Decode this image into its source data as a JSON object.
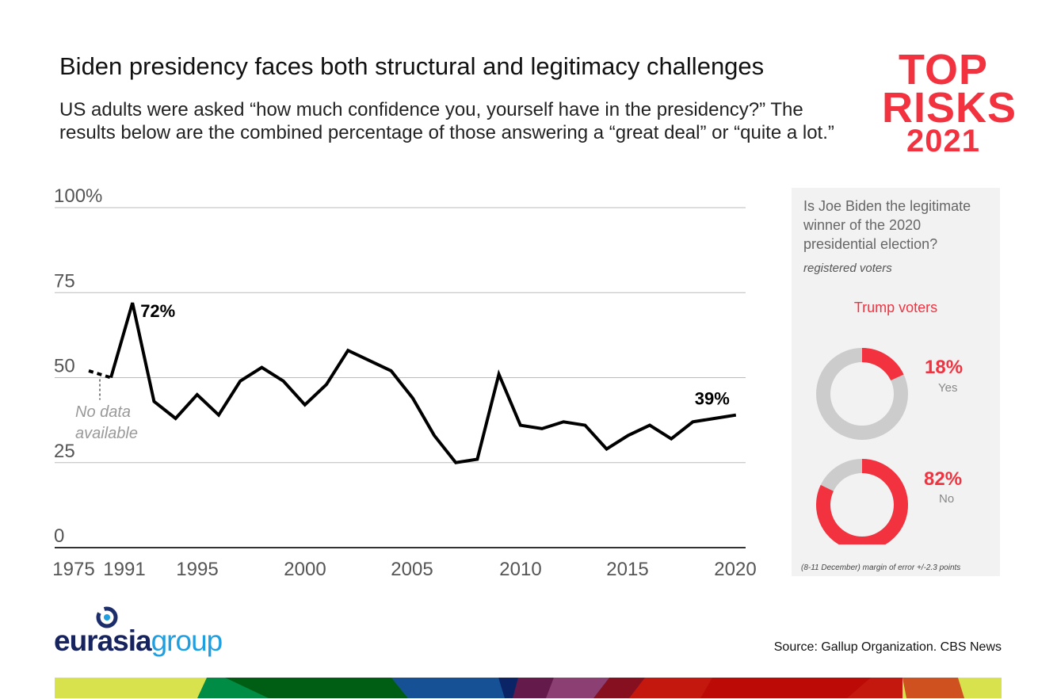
{
  "title": "Biden presidency faces both structural and legitimacy challenges",
  "subtitle": "US adults were asked “how much confidence you, yourself have in the presidency?” The results below are the combined percentage of those answering a “great deal” or “quite a lot.”",
  "logo": {
    "line1": "TOP",
    "line2": "RISKS",
    "line3": "2021",
    "color": "#f2323f"
  },
  "chart_data": [
    {
      "type": "line",
      "ylim": [
        0,
        100
      ],
      "y_ticks": [
        "0",
        "25",
        "50",
        "75",
        "100%"
      ],
      "y_tick_values": [
        0,
        25,
        50,
        75,
        100
      ],
      "x_tick_labels": [
        "1975",
        "1991",
        "1995",
        "2000",
        "2005",
        "2010",
        "2015",
        "2020"
      ],
      "grid": true,
      "color": "#000000",
      "points": [
        {
          "x": 1975,
          "y": 52
        },
        {
          "x": 1991,
          "y": 50
        },
        {
          "x": 1992,
          "y": 72
        },
        {
          "x": 1993,
          "y": 43
        },
        {
          "x": 1994,
          "y": 38
        },
        {
          "x": 1995,
          "y": 45
        },
        {
          "x": 1996,
          "y": 39
        },
        {
          "x": 1997,
          "y": 49
        },
        {
          "x": 1998,
          "y": 53
        },
        {
          "x": 1999,
          "y": 49
        },
        {
          "x": 2000,
          "y": 42
        },
        {
          "x": 2001,
          "y": 48
        },
        {
          "x": 2002,
          "y": 58
        },
        {
          "x": 2003,
          "y": 55
        },
        {
          "x": 2004,
          "y": 52
        },
        {
          "x": 2005,
          "y": 44
        },
        {
          "x": 2006,
          "y": 33
        },
        {
          "x": 2007,
          "y": 25
        },
        {
          "x": 2008,
          "y": 26
        },
        {
          "x": 2009,
          "y": 51
        },
        {
          "x": 2010,
          "y": 36
        },
        {
          "x": 2011,
          "y": 35
        },
        {
          "x": 2012,
          "y": 37
        },
        {
          "x": 2013,
          "y": 36
        },
        {
          "x": 2014,
          "y": 29
        },
        {
          "x": 2015,
          "y": 33
        },
        {
          "x": 2016,
          "y": 36
        },
        {
          "x": 2017,
          "y": 32
        },
        {
          "x": 2018,
          "y": 37
        },
        {
          "x": 2019,
          "y": 38
        },
        {
          "x": 2020,
          "y": 39
        }
      ],
      "annotations": {
        "peak": "72%",
        "last": "39%",
        "gap": "No data available"
      }
    },
    {
      "type": "pie",
      "title": "Is Joe Biden the legitimate winner of the 2020 presidential election?",
      "subtitle": "registered voters",
      "group": "Trump voters",
      "slices": [
        {
          "label": "Yes",
          "value": 18,
          "text": "18%"
        },
        {
          "label": "No",
          "value": 82,
          "text": "82%"
        }
      ],
      "colors": {
        "highlight": "#f2323f",
        "rest": "#cccccc"
      },
      "note": "(8-11 December) margin of error +/-2.3 points"
    }
  ],
  "footer": {
    "brand1": "eurasia",
    "brand2": "group",
    "source": "Source: Gallup Organization. CBS News"
  }
}
